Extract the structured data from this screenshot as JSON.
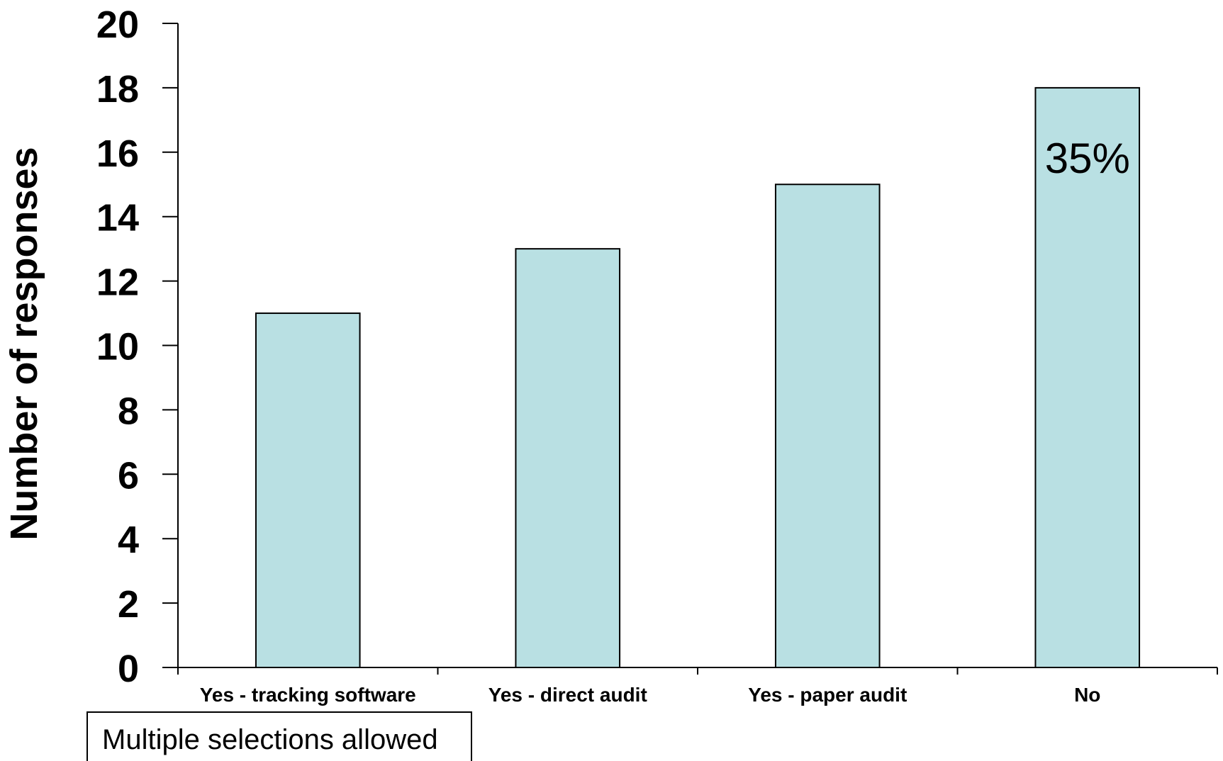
{
  "chart_data": {
    "type": "bar",
    "categories": [
      "Yes - tracking software",
      "Yes - direct audit",
      "Yes - paper audit",
      "No"
    ],
    "values": [
      11,
      13,
      15,
      18
    ],
    "ylabel": "Number of responses",
    "xlabel": "",
    "ylim": [
      0,
      20
    ],
    "yticks": [
      0,
      2,
      4,
      6,
      8,
      10,
      12,
      14,
      16,
      18,
      20
    ],
    "data_labels": [
      "",
      "",
      "",
      "35%"
    ],
    "grid": false,
    "bar_color": "#b9e0e3",
    "bar_edge_color": "#000000"
  },
  "note": {
    "text": "Multiple selections allowed"
  }
}
